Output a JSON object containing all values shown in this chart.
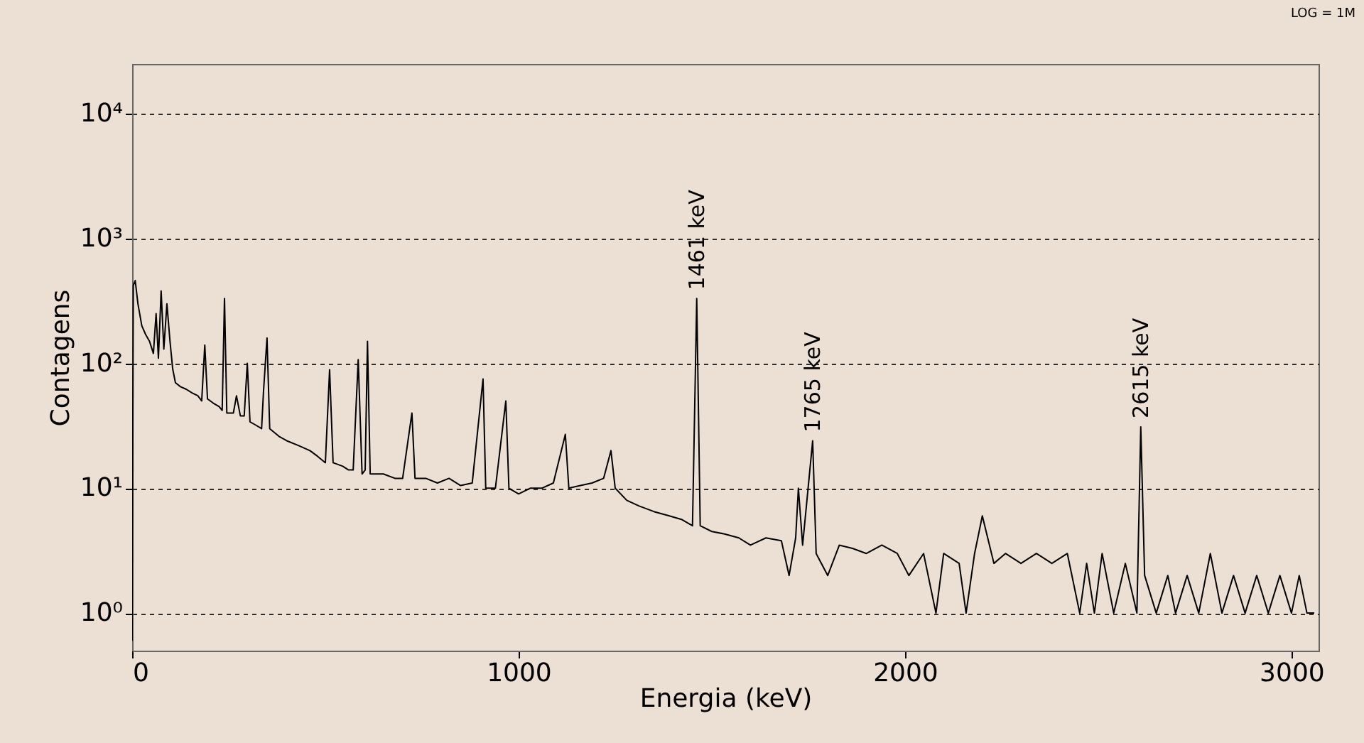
{
  "chart_data": {
    "type": "line",
    "xlabel": "Energia (keV)",
    "ylabel": "Contagens",
    "log": "y",
    "grid": "y",
    "xlim": [
      0,
      3070
    ],
    "ylim": [
      0.5,
      25000
    ],
    "xticks": [
      0,
      1000,
      2000,
      3000
    ],
    "yticks": [
      {
        "value": 1,
        "label": "10⁰"
      },
      {
        "value": 10,
        "label": "10¹"
      },
      {
        "value": 100,
        "label": "10²"
      },
      {
        "value": 1000,
        "label": "10³"
      },
      {
        "value": 10000,
        "label": "10⁴"
      }
    ],
    "annotations": [
      {
        "text": "1461 keV",
        "x": 1461,
        "y": 330
      },
      {
        "text": "1765 keV",
        "x": 1761,
        "y": 24
      },
      {
        "text": "2615 keV",
        "x": 2610,
        "y": 31
      },
      "LOG = 1M"
    ],
    "series": [
      {
        "color": "#000000",
        "x": [
          0,
          3,
          8,
          15,
          25,
          35,
          45,
          55,
          62,
          68,
          75,
          82,
          90,
          98,
          105,
          112,
          125,
          140,
          155,
          170,
          180,
          188,
          195,
          210,
          225,
          233,
          239,
          245,
          262,
          270,
          280,
          290,
          298,
          305,
          320,
          335,
          340,
          349,
          356,
          380,
          400,
          430,
          460,
          480,
          500,
          511,
          520,
          545,
          560,
          572,
          585,
          595,
          603,
          609,
          616,
          650,
          680,
          700,
          724,
          732,
          760,
          790,
          820,
          850,
          880,
          908,
          915,
          940,
          967,
          975,
          1000,
          1030,
          1060,
          1090,
          1121,
          1130,
          1160,
          1190,
          1220,
          1239,
          1250,
          1280,
          1312,
          1350,
          1390,
          1423,
          1450,
          1461,
          1470,
          1500,
          1533,
          1570,
          1600,
          1640,
          1680,
          1700,
          1717,
          1724,
          1735,
          1761,
          1770,
          1800,
          1830,
          1864,
          1900,
          1940,
          1980,
          2010,
          2048,
          2080,
          2100,
          2140,
          2158,
          2180,
          2200,
          2230,
          2260,
          2300,
          2340,
          2380,
          2420,
          2452,
          2470,
          2490,
          2510,
          2540,
          2570,
          2600,
          2610,
          2620,
          2650,
          2680,
          2700,
          2730,
          2760,
          2790,
          2820,
          2850,
          2880,
          2910,
          2940,
          2970,
          3000,
          3020,
          3040,
          3059
        ],
        "values": [
          0.6,
          420,
          460,
          300,
          200,
          170,
          150,
          120,
          250,
          110,
          380,
          130,
          300,
          150,
          90,
          70,
          65,
          62,
          58,
          55,
          50,
          140,
          52,
          48,
          45,
          42,
          330,
          40,
          40,
          55,
          38,
          38,
          100,
          34,
          32,
          30,
          60,
          160,
          30,
          26,
          24,
          22,
          20,
          18,
          16,
          89,
          16,
          15,
          14,
          14,
          107,
          13,
          14,
          150,
          13,
          13,
          12,
          12,
          40,
          12,
          12,
          11,
          12,
          10.5,
          11,
          75,
          10,
          10,
          50,
          10,
          9,
          10,
          10,
          11,
          27,
          10,
          10.5,
          11,
          12,
          20,
          10,
          8,
          7.2,
          6.5,
          6,
          5.6,
          5,
          330,
          5,
          4.5,
          4.3,
          4,
          3.5,
          4,
          3.8,
          2,
          4,
          10,
          3.5,
          24,
          3,
          2,
          3.5,
          3.3,
          3,
          3.5,
          3,
          2,
          3,
          1,
          3,
          2.5,
          1,
          3,
          6,
          2.5,
          3,
          2.5,
          3,
          2.5,
          3,
          1,
          2.5,
          1,
          3,
          1,
          2.5,
          1,
          31,
          2,
          1,
          2,
          1,
          2,
          1,
          3,
          1,
          2,
          1,
          2,
          1,
          2,
          1,
          2,
          1,
          1
        ]
      }
    ]
  }
}
